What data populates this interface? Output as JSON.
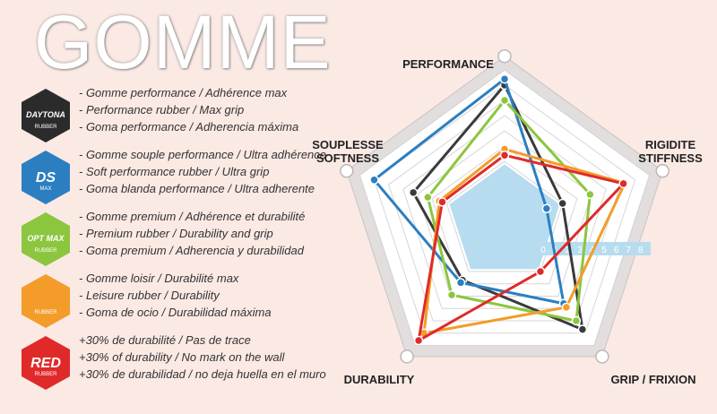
{
  "title": "GOMME",
  "legend": [
    {
      "badge": "DAYTONA",
      "badge_sub": "RUBBER",
      "color": "#2b2b2b",
      "lines": [
        "- Gomme performance / Adhérence max",
        "- Performance rubber / Max grip",
        "- Goma performance / Adherencia máxima"
      ]
    },
    {
      "badge": "DS",
      "badge_sub": "MAX",
      "color": "#2b7fc1",
      "lines": [
        "- Gomme souple performance / Ultra adhérence",
        "- Soft performance rubber / Ultra grip",
        "- Goma blanda performance / Ultra adherente"
      ]
    },
    {
      "badge": "OPT MAX",
      "badge_sub": "RUBBER",
      "color": "#8cc63f",
      "lines": [
        "- Gomme premium / Adhérence et durabilité",
        "- Premium rubber / Durability and grip",
        "- Goma premium / Adherencia y durabilidad"
      ]
    },
    {
      "badge": "",
      "badge_sub": "RUBBER",
      "color": "#f39c2a",
      "lines": [
        "- Gomme loisir / Durabilité max",
        "- Leisure rubber / Durability",
        "- Goma de ocio / Durabilidad máxima"
      ]
    },
    {
      "badge": "RED",
      "badge_sub": "RUBBER",
      "color": "#e02a2a",
      "lines": [
        "+30% de durabilité / Pas de trace",
        "+30% of durability / No mark on the wall",
        "+30% de durabilidad / no deja huella en el muro"
      ]
    }
  ],
  "chart_data": {
    "type": "radar",
    "axes": [
      {
        "label1": "PERFORMANCE",
        "label2": ""
      },
      {
        "label1": "RIGIDITE",
        "label2": "STIFFNESS"
      },
      {
        "label1": "GRIP / FRIXION",
        "label2": ""
      },
      {
        "label1": "DURABILITY",
        "label2": ""
      },
      {
        "label1": "SOUPLESSE",
        "label2": "SOFTNESS"
      }
    ],
    "scale_ticks": [
      "0",
      "1",
      "2",
      "3",
      "4",
      "5",
      "6",
      "7",
      "8"
    ],
    "range": [
      0,
      10
    ],
    "series": [
      {
        "color": "#3a3a3a",
        "values": [
          9.0,
          4.0,
          8.7,
          4.7,
          6.3
        ]
      },
      {
        "color": "#2b7fc1",
        "values": [
          9.4,
          2.9,
          6.6,
          4.9,
          9.0
        ]
      },
      {
        "color": "#8cc63f",
        "values": [
          8.0,
          5.9,
          8.0,
          5.9,
          5.3
        ]
      },
      {
        "color": "#f39c2a",
        "values": [
          4.8,
          8.3,
          6.9,
          9.0,
          4.5
        ]
      },
      {
        "color": "#e02a2a",
        "values": [
          4.4,
          8.2,
          4.0,
          9.6,
          4.3
        ]
      }
    ]
  }
}
